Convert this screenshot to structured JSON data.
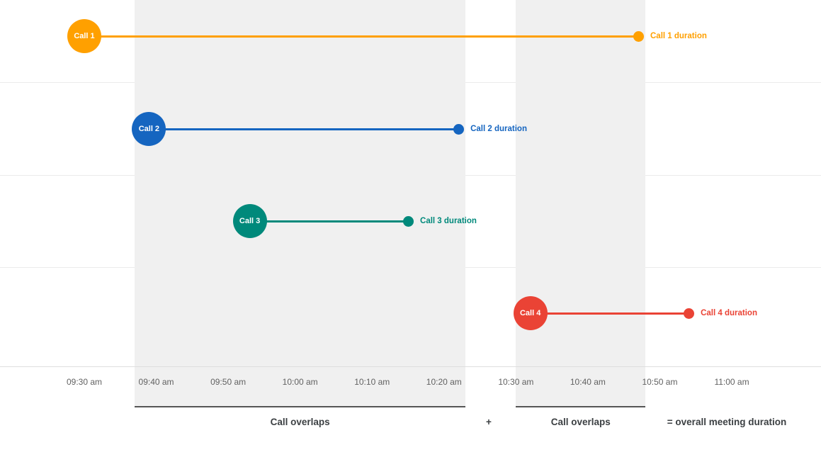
{
  "chart_data": {
    "type": "timeline",
    "title": "",
    "time_axis": {
      "start": "09:30 am",
      "end": "11:00 am",
      "tick_interval_minutes": 10,
      "ticks": [
        "09:30 am",
        "09:40 am",
        "09:50 am",
        "10:00 am",
        "10:10 am",
        "10:20 am",
        "10:30 am",
        "10:40 am",
        "10:50 am",
        "11:00 am"
      ]
    },
    "calls": [
      {
        "name": "Call 1",
        "duration_label": "Call 1 duration",
        "start": "09:30 am",
        "end": "10:47 am",
        "color": "#FFA000"
      },
      {
        "name": "Call 2",
        "duration_label": "Call 2 duration",
        "start": "09:39 am",
        "end": "10:22 am",
        "color": "#1565C0"
      },
      {
        "name": "Call 3",
        "duration_label": "Call 3 duration",
        "start": "09:53 am",
        "end": "10:15 am",
        "color": "#00897B"
      },
      {
        "name": "Call 4",
        "duration_label": "Call 4 duration",
        "start": "10:32 am",
        "end": "10:54 am",
        "color": "#EA4335"
      }
    ],
    "overlap_bands": [
      {
        "start": "09:37 am",
        "end": "10:23 am",
        "label": "Call overlaps"
      },
      {
        "start": "10:30 am",
        "end": "10:48 am",
        "label": "Call overlaps"
      }
    ],
    "annotations": {
      "plus": "+",
      "equals": "= overall meeting duration"
    },
    "layout_hints": {
      "grid": "horizontal-row-separators",
      "band_color": "#f0f0f0",
      "legend_position": "none"
    }
  }
}
